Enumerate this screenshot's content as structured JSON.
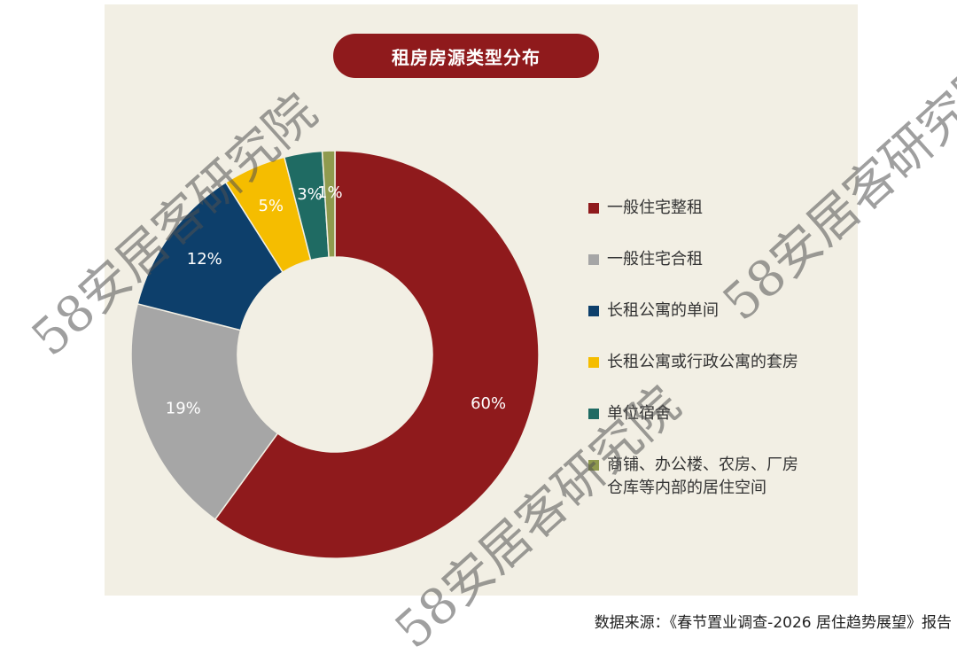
{
  "chart_data": {
    "type": "pie",
    "title": "租房房源类型分布",
    "categories": [
      "一般住宅整租",
      "一般住宅合租",
      "长租公寓的单间",
      "长租公寓或行政公寓的套房",
      "单位宿舍",
      "商铺、办公楼、农房、厂房仓库等内部的居住空间"
    ],
    "values": [
      60,
      19,
      12,
      5,
      3,
      1
    ],
    "value_labels": [
      "60%",
      "19%",
      "12%",
      "5%",
      "3%",
      "1%"
    ],
    "colors": [
      "#8f1a1c",
      "#a6a6a6",
      "#0d3f6b",
      "#f5bd00",
      "#1f6b63",
      "#8f9a4e"
    ],
    "legend": "right",
    "source": "数据来源：《春节置业调查-2026 居住趋势展望》报告",
    "watermark": "58安居客研究院"
  }
}
